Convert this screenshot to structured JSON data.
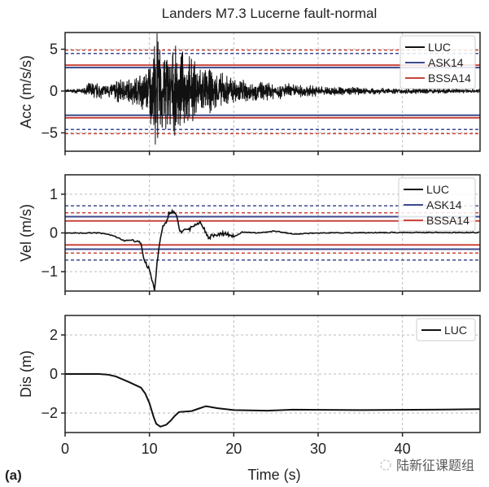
{
  "chart_data": [
    {
      "type": "line",
      "title": "Landers M7.3 Lucerne fault-normal",
      "xlabel": "",
      "ylabel": "Acc (m/s/s)",
      "xlim": [
        0,
        49.2
      ],
      "ylim": [
        -7.2,
        7
      ],
      "yticks": [
        5,
        0,
        -5
      ],
      "ytick_labels": [
        "5",
        "0",
        "−5"
      ],
      "xticks": [
        0,
        10,
        20,
        30,
        40
      ],
      "grid": true,
      "legend": [
        "LUC",
        "ASK14",
        "BSSA14"
      ],
      "legend_position": "top-right",
      "series": [
        {
          "name": "LUC",
          "color": "#111111",
          "kind": "noisy-record",
          "envelope_t": [
            0,
            2,
            3,
            5,
            6,
            8,
            9,
            9.8,
            10.3,
            10.9,
            12,
            13,
            14,
            15,
            16,
            17,
            18,
            20,
            22,
            25,
            30,
            35,
            40,
            49.2
          ],
          "envelope_a": [
            0.2,
            0.3,
            1.3,
            0.9,
            1.5,
            1.8,
            2.6,
            3.0,
            5.5,
            6.9,
            5.8,
            5.5,
            5.0,
            4.5,
            3.5,
            3.0,
            2.5,
            2.0,
            1.4,
            1.1,
            0.7,
            0.5,
            0.35,
            0.3
          ],
          "peak": {
            "t": 10.9,
            "value": 6.9
          },
          "trough": {
            "t": 10.7,
            "value": -6.4
          }
        },
        {
          "name": "ASK14",
          "color": "#3d4a8c",
          "median": [
            2.8,
            -2.9
          ],
          "dashed": [
            4.5,
            -4.6
          ]
        },
        {
          "name": "BSSA14",
          "color": "#c9453b",
          "median": [
            3.1,
            -3.2
          ],
          "dashed": [
            4.9,
            -5.1
          ]
        }
      ]
    },
    {
      "type": "line",
      "xlabel": "",
      "ylabel": "Vel (m/s)",
      "xlim": [
        0,
        49.2
      ],
      "ylim": [
        -1.5,
        1.5
      ],
      "yticks": [
        1,
        0,
        -1
      ],
      "ytick_labels": [
        "1",
        "0",
        "−1"
      ],
      "xticks": [
        0,
        10,
        20,
        30,
        40
      ],
      "grid": true,
      "legend": [
        "LUC",
        "ASK14",
        "BSSA14"
      ],
      "legend_position": "top-right",
      "series": [
        {
          "name": "LUC",
          "color": "#111111",
          "x": [
            0,
            4,
            5,
            6,
            7,
            8,
            8.5,
            9,
            9.3,
            9.6,
            10,
            10.3,
            10.6,
            10.9,
            11.2,
            11.5,
            12,
            12.3,
            12.8,
            13.3,
            13.6,
            14,
            14.5,
            15,
            15.5,
            16,
            16.5,
            17,
            17.5,
            18,
            19,
            20,
            21,
            23,
            25,
            27,
            30,
            40,
            49.2
          ],
          "y": [
            0,
            0,
            -0.03,
            -0.1,
            -0.2,
            -0.18,
            -0.22,
            -0.3,
            -0.6,
            -0.8,
            -0.95,
            -1.2,
            -1.5,
            -0.8,
            -0.3,
            0.1,
            0.3,
            0.5,
            0.55,
            0.4,
            0.0,
            0.1,
            0.05,
            0.15,
            0.2,
            0.25,
            0.1,
            -0.15,
            -0.05,
            -0.05,
            0,
            -0.1,
            0.02,
            0.0,
            0.05,
            -0.03,
            0,
            0.01,
            0.01
          ]
        },
        {
          "name": "ASK14",
          "color": "#3d4a8c",
          "median": [
            0.42,
            -0.42
          ],
          "dashed": [
            0.7,
            -0.7
          ]
        },
        {
          "name": "BSSA14",
          "color": "#c9453b",
          "median": [
            0.31,
            -0.31
          ],
          "dashed": [
            0.52,
            -0.52
          ]
        }
      ]
    },
    {
      "type": "line",
      "xlabel": "Time (s)",
      "ylabel": "Dis (m)",
      "xlim": [
        0,
        49.2
      ],
      "ylim": [
        -3,
        3
      ],
      "yticks": [
        2,
        0,
        -2
      ],
      "ytick_labels": [
        "2",
        "0",
        "−2"
      ],
      "xticks": [
        0,
        10,
        20,
        30,
        40
      ],
      "xtick_labels": [
        "0",
        "10",
        "20",
        "30",
        "40"
      ],
      "grid": true,
      "legend": [
        "LUC"
      ],
      "legend_position": "top-right",
      "series": [
        {
          "name": "LUC",
          "color": "#111111",
          "x": [
            0,
            4,
            5,
            6,
            7.5,
            9,
            9.5,
            10,
            10.5,
            10.8,
            11.3,
            12,
            12.5,
            13,
            13.5,
            15,
            16,
            16.7,
            18,
            20,
            24,
            27,
            35,
            45,
            49.2
          ],
          "y": [
            0,
            0,
            -0.03,
            -0.12,
            -0.4,
            -0.7,
            -1.0,
            -1.5,
            -2.2,
            -2.55,
            -2.7,
            -2.6,
            -2.4,
            -2.15,
            -1.95,
            -1.9,
            -1.75,
            -1.65,
            -1.75,
            -1.85,
            -1.88,
            -1.83,
            -1.85,
            -1.82,
            -1.8
          ]
        }
      ]
    }
  ],
  "panel_label": "(a)",
  "watermark": "陆新征课题组"
}
